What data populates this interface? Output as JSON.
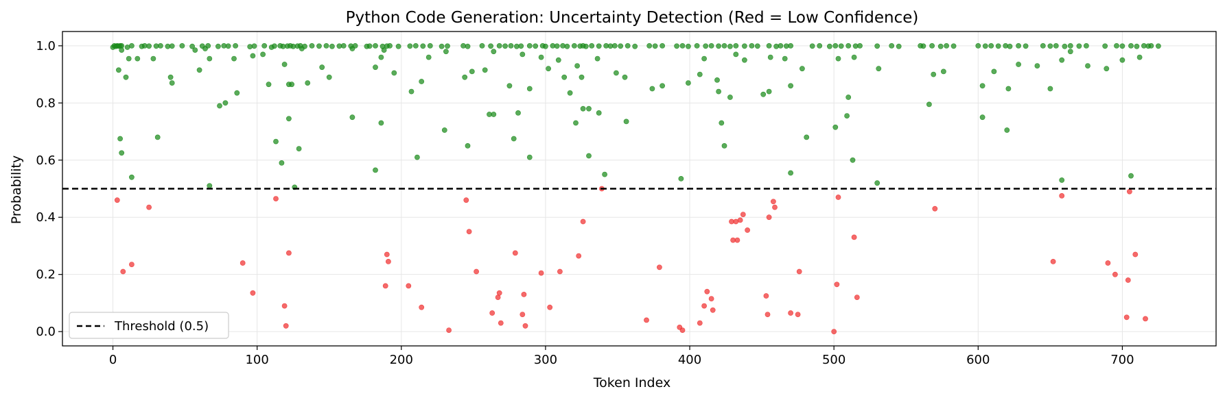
{
  "chart_data": {
    "type": "scatter",
    "title": "Python Code Generation: Uncertainty Detection (Red = Low Confidence)",
    "xlabel": "Token Index",
    "ylabel": "Probability",
    "xlim": [
      -35,
      765
    ],
    "ylim": [
      -0.05,
      1.05
    ],
    "xticks": [
      0,
      100,
      200,
      300,
      400,
      500,
      600,
      700
    ],
    "yticks": [
      0.0,
      0.2,
      0.4,
      0.6,
      0.8,
      1.0
    ],
    "grid": true,
    "legend_position": "lower-left",
    "threshold": {
      "value": 0.5,
      "label": "Threshold (0.5)",
      "color": "#000000",
      "style": "dashed"
    },
    "colors": {
      "high": "#1a8a1a",
      "low": "#f03030"
    },
    "series": [
      {
        "category": "high",
        "x": [
          0,
          1,
          2,
          3,
          4,
          5,
          6,
          10,
          13,
          20,
          22,
          25,
          30,
          33,
          38,
          41,
          48,
          55,
          62,
          66,
          73,
          77,
          80,
          85,
          95,
          98,
          105,
          110,
          112,
          116,
          118,
          121,
          123,
          125,
          128,
          130,
          133,
          138,
          143,
          148,
          152,
          157,
          160,
          165,
          168,
          176,
          178,
          182,
          187,
          190,
          192,
          198,
          206,
          210,
          215,
          220,
          228,
          232,
          243,
          246,
          256,
          262,
          268,
          272,
          276,
          280,
          283,
          289,
          293,
          298,
          300,
          305,
          308,
          312,
          315,
          320,
          324,
          326,
          328,
          332,
          337,
          342,
          345,
          348,
          352,
          357,
          362,
          372,
          376,
          381,
          391,
          395,
          399,
          405,
          411,
          415,
          420,
          424,
          428,
          432,
          438,
          443,
          447,
          455,
          460,
          463,
          467,
          470,
          485,
          490,
          497,
          501,
          505,
          510,
          515,
          518,
          530,
          540,
          545,
          560,
          562,
          568,
          574,
          578,
          583,
          600,
          605,
          609,
          614,
          619,
          622,
          628,
          633,
          645,
          650,
          654,
          660,
          664,
          670,
          675,
          688,
          696,
          700,
          706,
          710,
          715,
          718,
          720,
          725,
          4,
          6,
          9,
          11,
          17,
          28,
          40,
          41,
          57,
          60,
          64,
          67,
          84,
          97,
          104,
          108,
          119,
          122,
          131,
          135,
          145,
          150,
          166,
          182,
          186,
          188,
          195,
          207,
          214,
          219,
          231,
          244,
          249,
          258,
          261,
          264,
          275,
          284,
          289,
          297,
          302,
          309,
          313,
          317,
          322,
          325,
          330,
          336,
          349,
          355,
          374,
          381,
          399,
          407,
          410,
          419,
          420,
          428,
          432,
          438,
          451,
          456,
          466,
          470,
          478,
          503,
          510,
          514,
          531,
          569,
          576,
          603,
          611,
          621,
          628,
          641,
          650,
          658,
          664,
          676,
          689,
          700,
          712,
          5,
          6,
          13,
          31,
          67,
          74,
          78,
          86,
          113,
          117,
          122,
          124,
          126,
          129,
          166,
          182,
          186,
          211,
          230,
          246,
          264,
          278,
          281,
          289,
          321,
          326,
          330,
          337,
          341,
          356,
          394,
          422,
          424,
          455,
          470,
          481,
          501,
          509,
          513,
          530,
          566,
          603,
          620,
          658,
          706
        ],
        "y": [
          0.995,
          1.0,
          0.998,
          1.0,
          0.999,
          1.0,
          1.0,
          0.995,
          1.0,
          0.998,
          1.0,
          0.999,
          0.999,
          1.0,
          0.998,
          0.999,
          1.0,
          0.998,
          0.999,
          1.0,
          0.998,
          1.0,
          0.999,
          1.0,
          0.997,
          0.999,
          1.0,
          0.995,
          0.999,
          1.0,
          0.998,
          0.999,
          1.0,
          0.998,
          0.999,
          1.0,
          0.998,
          1.0,
          0.999,
          1.0,
          0.998,
          0.999,
          1.0,
          0.999,
          1.0,
          0.998,
          0.999,
          1.0,
          0.998,
          0.999,
          1.0,
          0.998,
          0.999,
          1.0,
          0.999,
          1.0,
          0.998,
          0.999,
          1.0,
          0.998,
          1.0,
          0.999,
          1.0,
          0.999,
          1.0,
          0.998,
          0.999,
          1.0,
          0.999,
          1.0,
          0.998,
          1.0,
          0.999,
          1.0,
          0.998,
          1.0,
          0.999,
          1.0,
          0.998,
          1.0,
          0.999,
          1.0,
          0.999,
          1.0,
          0.999,
          1.0,
          0.998,
          1.0,
          0.999,
          1.0,
          0.999,
          1.0,
          0.998,
          1.0,
          0.999,
          1.0,
          0.999,
          1.0,
          0.998,
          1.0,
          0.999,
          1.0,
          0.999,
          1.0,
          0.998,
          1.0,
          0.999,
          1.0,
          0.999,
          1.0,
          0.998,
          1.0,
          0.999,
          1.0,
          0.999,
          1.0,
          0.999,
          1.0,
          0.998,
          1.0,
          0.999,
          1.0,
          0.998,
          1.0,
          0.999,
          1.0,
          0.999,
          1.0,
          0.999,
          1.0,
          0.998,
          1.0,
          0.999,
          1.0,
          0.999,
          1.0,
          0.998,
          1.0,
          0.999,
          1.0,
          0.999,
          1.0,
          0.999,
          1.0,
          0.998,
          1.0,
          0.999,
          1.0,
          0.999,
          0.915,
          0.985,
          0.89,
          0.955,
          0.955,
          0.955,
          0.89,
          0.87,
          0.985,
          0.915,
          0.99,
          0.955,
          0.955,
          0.965,
          0.97,
          0.865,
          0.935,
          0.865,
          0.99,
          0.87,
          0.925,
          0.89,
          0.99,
          0.925,
          0.96,
          0.985,
          0.905,
          0.84,
          0.875,
          0.96,
          0.98,
          0.89,
          0.91,
          0.915,
          0.76,
          0.98,
          0.86,
          0.97,
          0.85,
          0.96,
          0.92,
          0.95,
          0.89,
          0.835,
          0.93,
          0.89,
          0.78,
          0.955,
          0.905,
          0.89,
          0.85,
          0.86,
          0.87,
          0.9,
          0.955,
          0.88,
          0.84,
          0.82,
          0.97,
          0.95,
          0.83,
          0.96,
          0.955,
          0.86,
          0.92,
          0.955,
          0.82,
          0.96,
          0.92,
          0.9,
          0.91,
          0.86,
          0.91,
          0.85,
          0.935,
          0.93,
          0.85,
          0.95,
          0.98,
          0.93,
          0.92,
          0.95,
          0.96,
          0.675,
          0.625,
          0.54,
          0.68,
          0.51,
          0.79,
          0.8,
          0.835,
          0.665,
          0.59,
          0.745,
          0.865,
          0.505,
          0.64,
          0.75,
          0.565,
          0.73,
          0.61,
          0.705,
          0.65,
          0.76,
          0.675,
          0.765,
          0.61,
          0.73,
          0.78,
          0.615,
          0.765,
          0.55,
          0.735,
          0.535,
          0.73,
          0.65,
          0.84,
          0.555,
          0.68,
          0.715,
          0.755,
          0.6,
          0.52,
          0.795,
          0.75,
          0.705,
          0.53,
          0.545
        ]
      },
      {
        "category": "low",
        "x": [
          3,
          7,
          13,
          25,
          90,
          97,
          113,
          119,
          120,
          122,
          189,
          190,
          191,
          205,
          214,
          233,
          245,
          247,
          252,
          263,
          267,
          268,
          269,
          279,
          284,
          285,
          286,
          297,
          303,
          310,
          323,
          326,
          339,
          370,
          379,
          393,
          395,
          407,
          410,
          412,
          415,
          416,
          429,
          430,
          432,
          433,
          435,
          437,
          440,
          453,
          454,
          455,
          458,
          459,
          470,
          475,
          476,
          500,
          502,
          503,
          514,
          516,
          570,
          652,
          658,
          690,
          695,
          703,
          704,
          705,
          709,
          716
        ],
        "y": [
          0.46,
          0.21,
          0.235,
          0.435,
          0.24,
          0.135,
          0.465,
          0.09,
          0.02,
          0.275,
          0.16,
          0.27,
          0.245,
          0.16,
          0.085,
          0.005,
          0.46,
          0.35,
          0.21,
          0.065,
          0.12,
          0.135,
          0.03,
          0.275,
          0.06,
          0.13,
          0.02,
          0.205,
          0.085,
          0.21,
          0.265,
          0.385,
          0.5,
          0.04,
          0.225,
          0.015,
          0.005,
          0.03,
          0.09,
          0.14,
          0.115,
          0.075,
          0.385,
          0.32,
          0.385,
          0.32,
          0.39,
          0.41,
          0.355,
          0.125,
          0.06,
          0.4,
          0.455,
          0.435,
          0.065,
          0.06,
          0.21,
          0.0,
          0.165,
          0.47,
          0.33,
          0.12,
          0.43,
          0.245,
          0.475,
          0.24,
          0.2,
          0.05,
          0.18,
          0.49,
          0.27,
          0.045
        ]
      }
    ]
  }
}
